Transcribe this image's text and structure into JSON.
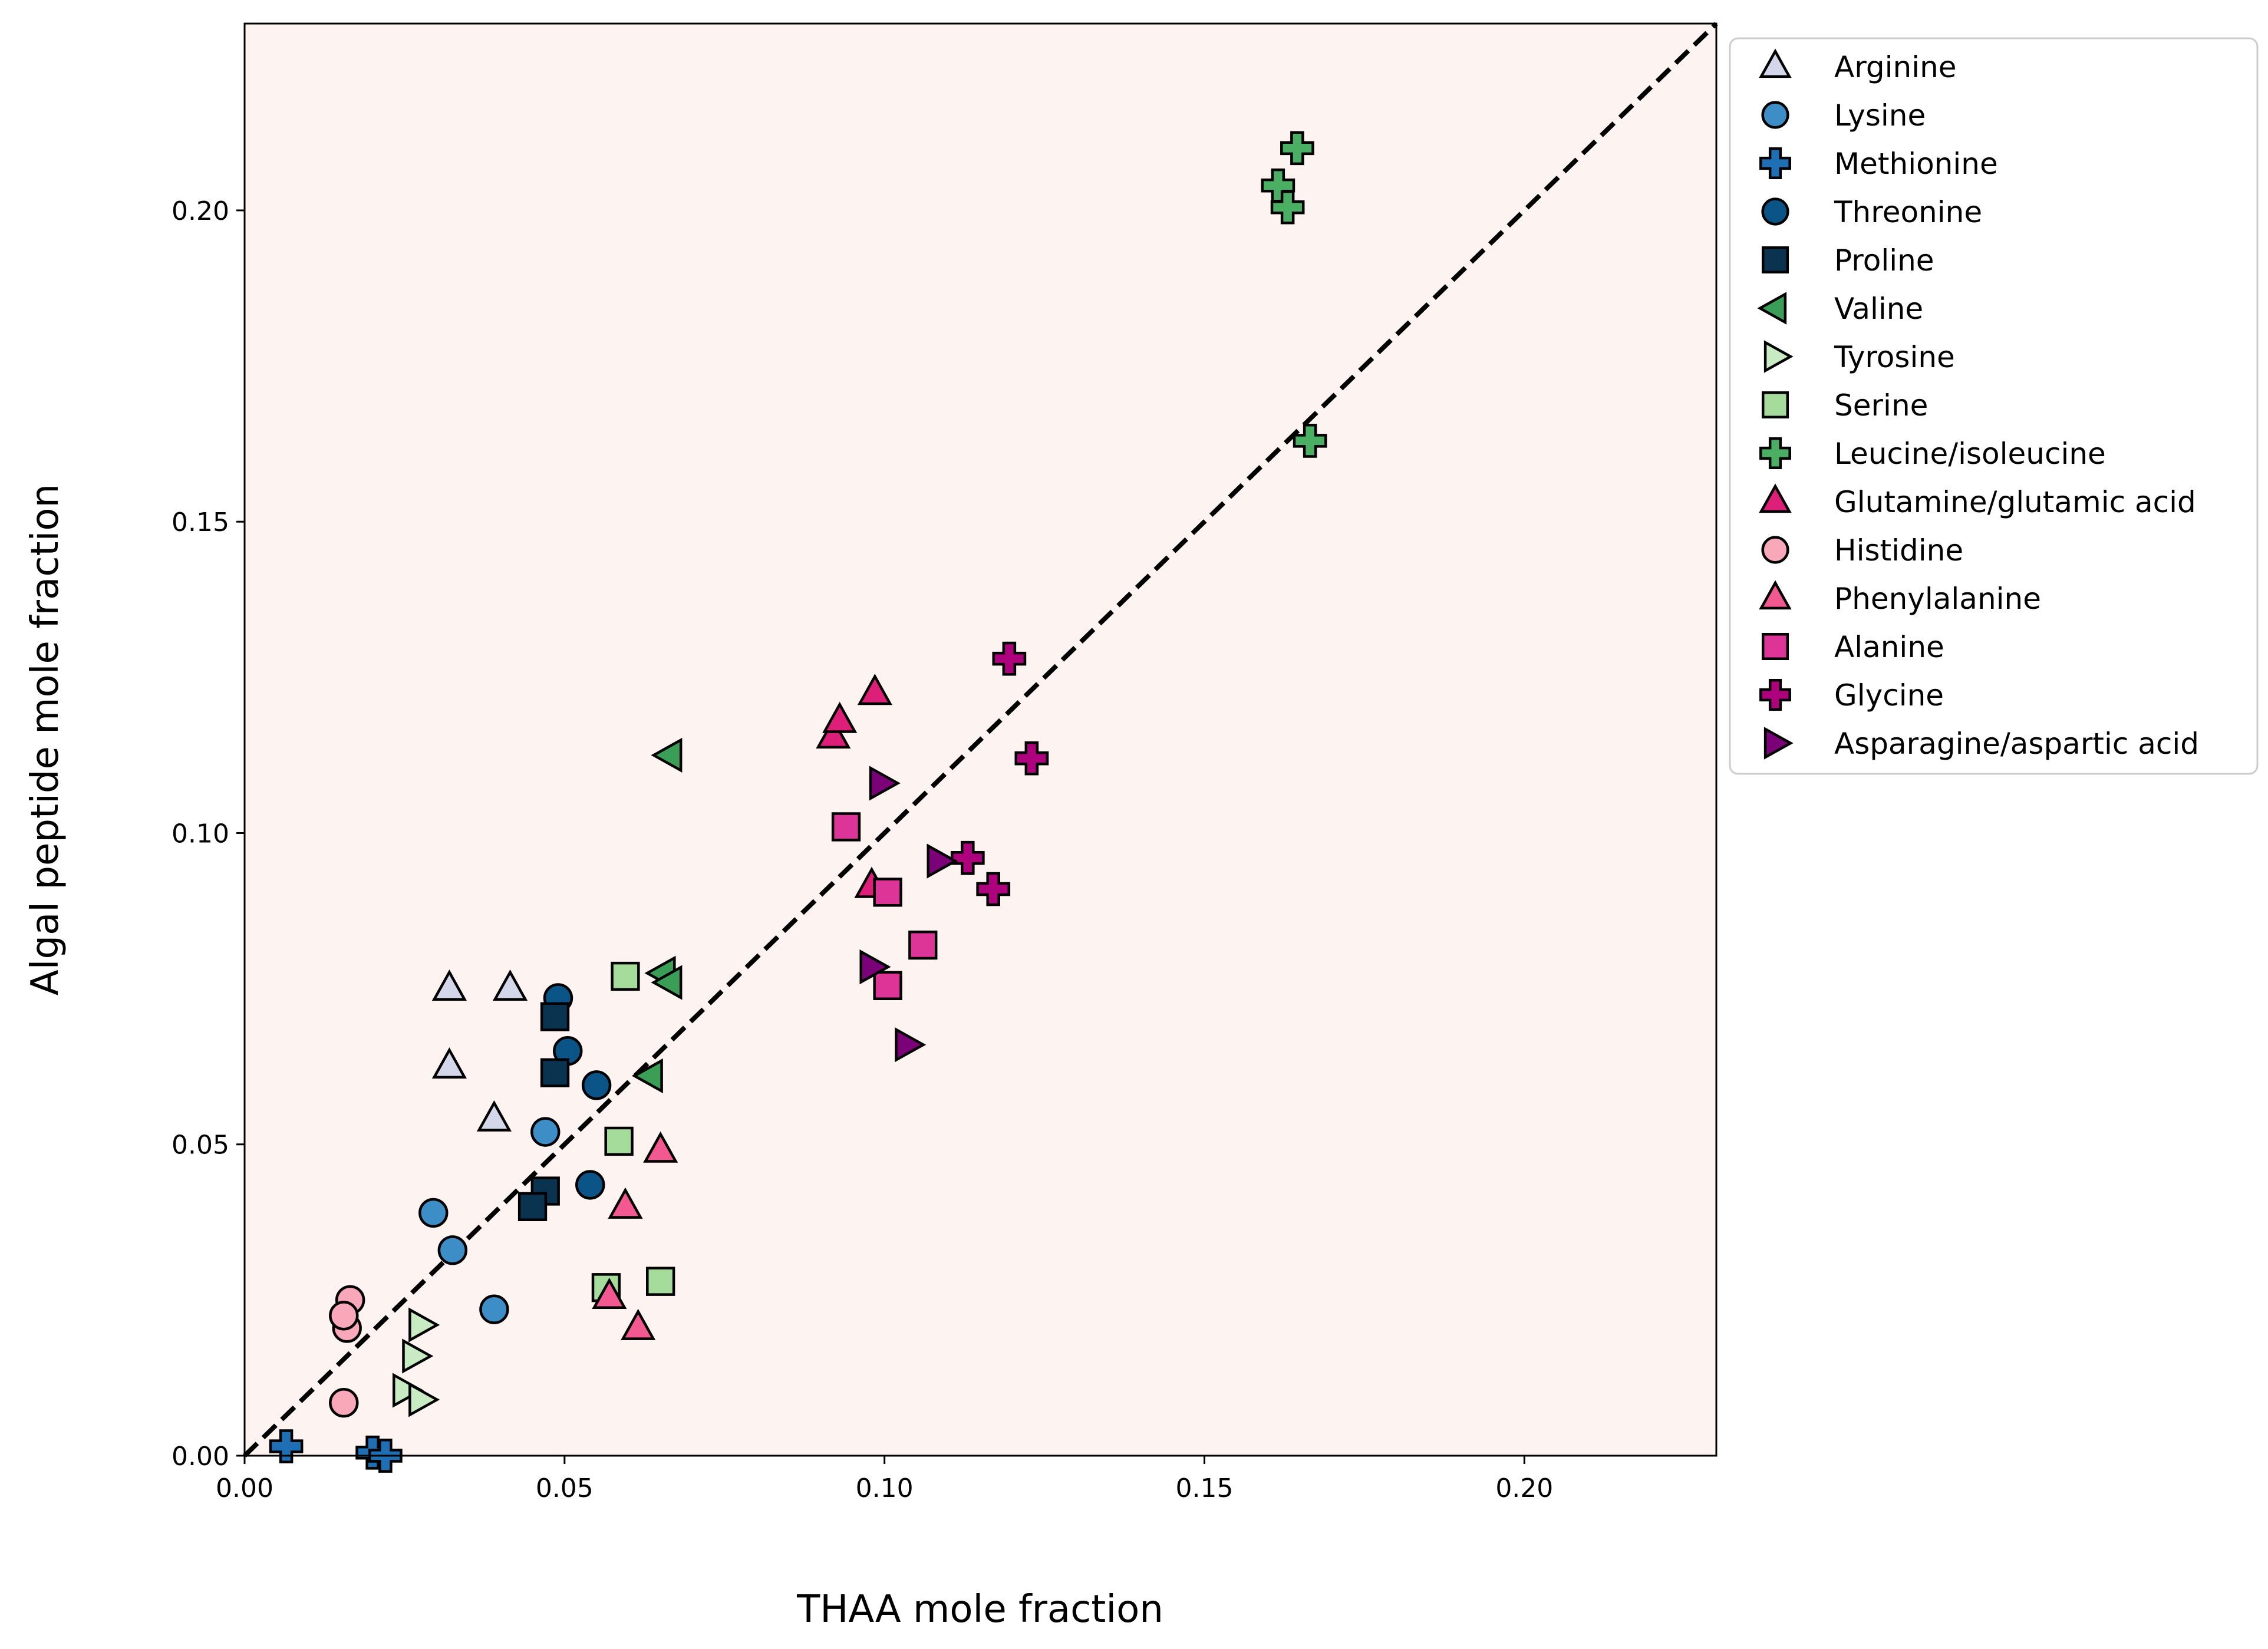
{
  "chart_data": {
    "type": "scatter",
    "title": "",
    "xlabel": "THAA mole fraction",
    "ylabel": "Algal peptide mole fraction",
    "xlim": [
      0.0,
      0.23
    ],
    "ylim": [
      0.0,
      0.23
    ],
    "xticks": [
      0.0,
      0.05,
      0.1,
      0.15,
      0.2
    ],
    "yticks": [
      0.0,
      0.05,
      0.1,
      0.15,
      0.2
    ],
    "xtick_labels": [
      "0.00",
      "0.05",
      "0.10",
      "0.15",
      "0.20"
    ],
    "ytick_labels": [
      "0.00",
      "0.05",
      "0.10",
      "0.15",
      "0.20"
    ],
    "background_color": "#fdf4f1",
    "reference_line": {
      "style": "dashed",
      "slope": 1,
      "color": "#000000"
    },
    "legend_position": "outside-right-top",
    "series": [
      {
        "name": "Arginine",
        "marker": "triangle-up",
        "color": "#d4d6ea",
        "x": [
          0.032,
          0.0415,
          0.032,
          0.039
        ],
        "y": [
          0.075,
          0.075,
          0.0625,
          0.054
        ]
      },
      {
        "name": "Lysine",
        "marker": "circle",
        "color": "#3d8ec6",
        "x": [
          0.047,
          0.0295,
          0.0325,
          0.039
        ],
        "y": [
          0.052,
          0.039,
          0.033,
          0.0235
        ]
      },
      {
        "name": "Methionine",
        "marker": "plus",
        "color": "#1e6fb3",
        "x": [
          0.0065,
          0.02,
          0.022
        ],
        "y": [
          0.0015,
          0.0005,
          0.0
        ]
      },
      {
        "name": "Threonine",
        "marker": "circle",
        "color": "#0b5488",
        "x": [
          0.049,
          0.0505,
          0.055,
          0.054
        ],
        "y": [
          0.0735,
          0.065,
          0.0595,
          0.0435
        ]
      },
      {
        "name": "Proline",
        "marker": "square",
        "color": "#0a3350",
        "x": [
          0.0485,
          0.0485,
          0.047,
          0.045
        ],
        "y": [
          0.0705,
          0.0615,
          0.0425,
          0.04
        ]
      },
      {
        "name": "Valine",
        "marker": "triangle-left",
        "color": "#3a9e57",
        "x": [
          0.0665,
          0.0655,
          0.0665,
          0.0635
        ],
        "y": [
          0.1125,
          0.0775,
          0.076,
          0.061
        ]
      },
      {
        "name": "Tyrosine",
        "marker": "triangle-right",
        "color": "#c9ebc4",
        "x": [
          0.0275,
          0.0265,
          0.025,
          0.0275
        ],
        "y": [
          0.021,
          0.016,
          0.0105,
          0.009
        ]
      },
      {
        "name": "Serine",
        "marker": "square",
        "color": "#a5dc9c",
        "x": [
          0.0595,
          0.0585,
          0.0565,
          0.065
        ],
        "y": [
          0.077,
          0.0505,
          0.027,
          0.028
        ]
      },
      {
        "name": "Leucine/isoleucine",
        "marker": "plus",
        "color": "#4aae63",
        "x": [
          0.1645,
          0.1615,
          0.163,
          0.1665
        ],
        "y": [
          0.21,
          0.204,
          0.2005,
          0.163
        ]
      },
      {
        "name": "Glutamine/glutamic acid",
        "marker": "triangle-up",
        "color": "#dd1f79",
        "x": [
          0.0985,
          0.092,
          0.093,
          0.098
        ],
        "y": [
          0.1225,
          0.1155,
          0.118,
          0.0915
        ]
      },
      {
        "name": "Histidine",
        "marker": "circle",
        "color": "#f9a8b9",
        "x": [
          0.0165,
          0.016,
          0.0155,
          0.0155
        ],
        "y": [
          0.025,
          0.0205,
          0.0225,
          0.0085
        ]
      },
      {
        "name": "Phenylalanine",
        "marker": "triangle-up",
        "color": "#f25990",
        "x": [
          0.065,
          0.0595,
          0.057,
          0.0615
        ],
        "y": [
          0.049,
          0.04,
          0.0255,
          0.0205
        ]
      },
      {
        "name": "Alanine",
        "marker": "square",
        "color": "#dd3497",
        "x": [
          0.094,
          0.1005,
          0.106,
          0.1005
        ],
        "y": [
          0.101,
          0.0905,
          0.082,
          0.0755
        ]
      },
      {
        "name": "Glycine",
        "marker": "plus",
        "color": "#ae017e",
        "x": [
          0.1195,
          0.123,
          0.113,
          0.117
        ],
        "y": [
          0.128,
          0.112,
          0.096,
          0.091
        ]
      },
      {
        "name": "Asparagine/aspartic acid",
        "marker": "triangle-right",
        "color": "#7a0177",
        "x": [
          0.0995,
          0.1085,
          0.098,
          0.1035
        ],
        "y": [
          0.108,
          0.0955,
          0.0785,
          0.066
        ]
      }
    ]
  }
}
